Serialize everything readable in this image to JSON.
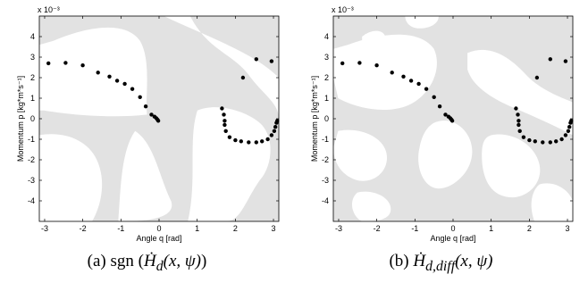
{
  "chart_data": [
    {
      "type": "scatter",
      "panel": "a",
      "xlabel": "Angle q [rad]",
      "ylabel": "Momentum p [kg*m*s⁻¹]",
      "y_exponent": "x 10⁻³",
      "xlim": [
        -3.14,
        3.14
      ],
      "ylim": [
        -0.005,
        0.005
      ],
      "x_ticks": [
        -3,
        -2,
        -1,
        0,
        1,
        2,
        3
      ],
      "y_ticks": [
        -4,
        -3,
        -2,
        -1,
        0,
        1,
        2,
        3,
        4
      ],
      "y_scale": 0.001,
      "grid": false,
      "background_colors": {
        "positive": "#e2e2e2",
        "negative": "#ffffff"
      },
      "points": [
        [
          -2.9,
          0.0027
        ],
        [
          -2.45,
          0.00272
        ],
        [
          -2.0,
          0.0026
        ],
        [
          -1.6,
          0.00225
        ],
        [
          -1.3,
          0.00205
        ],
        [
          -1.1,
          0.00185
        ],
        [
          -0.9,
          0.0017
        ],
        [
          -0.7,
          0.00145
        ],
        [
          -0.5,
          0.00105
        ],
        [
          -0.35,
          0.0006
        ],
        [
          -0.2,
          0.0002
        ],
        [
          -0.12,
          0.0001
        ],
        [
          -0.07,
          2e-05
        ],
        [
          -0.04,
          -5e-05
        ],
        [
          -0.02,
          -0.0001
        ],
        [
          1.65,
          0.0005
        ],
        [
          1.7,
          0.0002
        ],
        [
          1.72,
          -0.0001
        ],
        [
          1.72,
          -0.0003
        ],
        [
          1.75,
          -0.0006
        ],
        [
          1.85,
          -0.0009
        ],
        [
          2.0,
          -0.00105
        ],
        [
          2.15,
          -0.0011
        ],
        [
          2.35,
          -0.00115
        ],
        [
          2.55,
          -0.00115
        ],
        [
          2.7,
          -0.0011
        ],
        [
          2.85,
          -0.001
        ],
        [
          2.95,
          -0.0008
        ],
        [
          3.02,
          -0.0006
        ],
        [
          3.05,
          -0.0004
        ],
        [
          3.08,
          -0.0002
        ],
        [
          3.1,
          -0.0001
        ],
        [
          2.2,
          0.002
        ],
        [
          2.55,
          0.0029
        ],
        [
          2.95,
          0.0028
        ]
      ]
    },
    {
      "type": "scatter",
      "panel": "b",
      "xlabel": "Angle q [rad]",
      "ylabel": "Momentum p [kg*m*s⁻¹]",
      "y_exponent": "x 10⁻³",
      "xlim": [
        -3.14,
        3.14
      ],
      "ylim": [
        -0.005,
        0.005
      ],
      "x_ticks": [
        -3,
        -2,
        -1,
        0,
        1,
        2,
        3
      ],
      "y_ticks": [
        -4,
        -3,
        -2,
        -1,
        0,
        1,
        2,
        3,
        4
      ],
      "y_scale": 0.001,
      "grid": false,
      "background_colors": {
        "positive": "#e2e2e2",
        "negative": "#ffffff"
      },
      "points": [
        [
          -2.9,
          0.0027
        ],
        [
          -2.45,
          0.00272
        ],
        [
          -2.0,
          0.0026
        ],
        [
          -1.6,
          0.00225
        ],
        [
          -1.3,
          0.00205
        ],
        [
          -1.1,
          0.00185
        ],
        [
          -0.9,
          0.0017
        ],
        [
          -0.7,
          0.00145
        ],
        [
          -0.5,
          0.00105
        ],
        [
          -0.35,
          0.0006
        ],
        [
          -0.2,
          0.0002
        ],
        [
          -0.12,
          0.0001
        ],
        [
          -0.07,
          2e-05
        ],
        [
          -0.04,
          -5e-05
        ],
        [
          -0.02,
          -0.0001
        ],
        [
          1.65,
          0.0005
        ],
        [
          1.7,
          0.0002
        ],
        [
          1.72,
          -0.0001
        ],
        [
          1.72,
          -0.0003
        ],
        [
          1.75,
          -0.0006
        ],
        [
          1.85,
          -0.0009
        ],
        [
          2.0,
          -0.00105
        ],
        [
          2.15,
          -0.0011
        ],
        [
          2.35,
          -0.00115
        ],
        [
          2.55,
          -0.00115
        ],
        [
          2.7,
          -0.0011
        ],
        [
          2.85,
          -0.001
        ],
        [
          2.95,
          -0.0008
        ],
        [
          3.02,
          -0.0006
        ],
        [
          3.05,
          -0.0004
        ],
        [
          3.08,
          -0.0002
        ],
        [
          3.1,
          -0.0001
        ],
        [
          2.2,
          0.002
        ],
        [
          2.55,
          0.0029
        ],
        [
          2.95,
          0.0028
        ]
      ]
    }
  ],
  "captions": {
    "a": {
      "prefix": "(a) ",
      "fn": "sgn",
      "body": "Ḣ",
      "sub": "d",
      "args": "(x, ψ)"
    },
    "b": {
      "prefix": "(b) ",
      "body": "Ḣ",
      "sub": "d,diff",
      "args": "(x, ψ)"
    }
  }
}
